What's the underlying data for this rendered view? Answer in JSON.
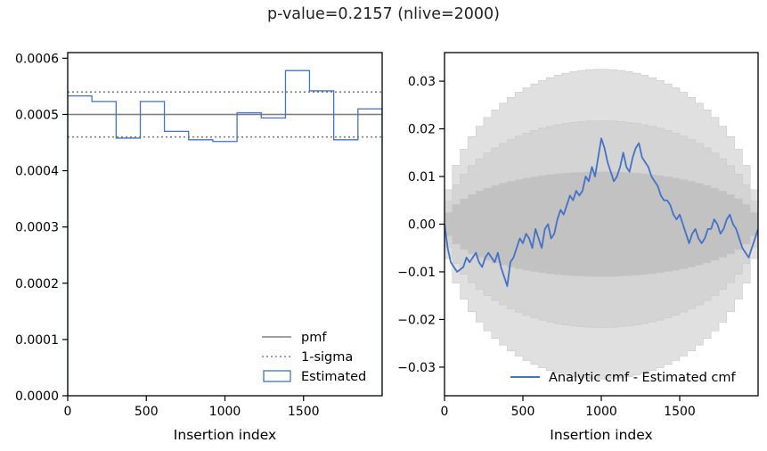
{
  "figure": {
    "title": "p-value=0.2157 (nlive=2000)"
  },
  "colors": {
    "estimated": "#4472c4",
    "pmf": "#808080",
    "band_outer": "#e0e0e0",
    "band_mid": "#d4d4d4",
    "band_inner": "#c2c2c2"
  },
  "chart_data": [
    {
      "type": "step",
      "title": "",
      "xlabel": "Insertion index",
      "ylabel": "",
      "xlim": [
        0,
        2000
      ],
      "ylim": [
        0,
        0.00061
      ],
      "xticks": [
        0,
        500,
        1000,
        1500
      ],
      "xtick_labels": [
        "0",
        "500",
        "1000",
        "1500"
      ],
      "yticks": [
        0,
        0.0001,
        0.0002,
        0.0003,
        0.0004,
        0.0005,
        0.0006
      ],
      "ytick_labels": [
        "0.0000",
        "0.0001",
        "0.0002",
        "0.0003",
        "0.0004",
        "0.0005",
        "0.0006"
      ],
      "legend_position": "lower-right",
      "pmf": 0.0005,
      "one_sigma": [
        0.00046,
        0.00054
      ],
      "bin_edges": [
        0,
        154,
        308,
        462,
        615,
        769,
        923,
        1077,
        1231,
        1385,
        1538,
        1692,
        1846,
        2000
      ],
      "estimated": [
        0.000533,
        0.000523,
        0.000458,
        0.000523,
        0.00047,
        0.000455,
        0.000452,
        0.000503,
        0.000494,
        0.000578,
        0.000542,
        0.000455,
        0.00051
      ],
      "series": [
        {
          "name": "pmf"
        },
        {
          "name": "1-sigma"
        },
        {
          "name": "Estimated"
        }
      ]
    },
    {
      "type": "line",
      "title": "",
      "xlabel": "Insertion index",
      "ylabel": "",
      "xlim": [
        0,
        2000
      ],
      "ylim": [
        -0.036,
        0.036
      ],
      "xticks": [
        0,
        500,
        1000,
        1500
      ],
      "xtick_labels": [
        "0",
        "500",
        "1000",
        "1500"
      ],
      "yticks": [
        -0.03,
        -0.02,
        -0.01,
        0.0,
        0.01,
        0.02,
        0.03
      ],
      "ytick_labels": [
        "−0.03",
        "−0.02",
        "−0.01",
        "0.00",
        "0.01",
        "0.02",
        "0.03"
      ],
      "legend_position": "lower-right",
      "bands": {
        "inner_peak": 0.011,
        "mid_peak": 0.0217,
        "outer_peak": 0.0325,
        "steps": 40
      },
      "x": [
        0,
        20,
        40,
        60,
        80,
        100,
        120,
        140,
        160,
        180,
        200,
        220,
        240,
        260,
        280,
        300,
        320,
        340,
        360,
        380,
        400,
        420,
        440,
        460,
        480,
        500,
        520,
        540,
        560,
        580,
        600,
        620,
        640,
        660,
        680,
        700,
        720,
        740,
        760,
        780,
        800,
        820,
        840,
        860,
        880,
        900,
        920,
        940,
        960,
        980,
        1000,
        1020,
        1040,
        1060,
        1080,
        1100,
        1120,
        1140,
        1160,
        1180,
        1200,
        1220,
        1240,
        1260,
        1280,
        1300,
        1320,
        1340,
        1360,
        1380,
        1400,
        1420,
        1440,
        1460,
        1480,
        1500,
        1520,
        1540,
        1560,
        1580,
        1600,
        1620,
        1640,
        1660,
        1680,
        1700,
        1720,
        1740,
        1760,
        1780,
        1800,
        1820,
        1840,
        1860,
        1880,
        1900,
        1920,
        1940,
        1960,
        1980,
        2000
      ],
      "series": [
        {
          "name": "Analytic cmf - Estimated cmf",
          "values": [
            0.0,
            -0.005,
            -0.008,
            -0.009,
            -0.01,
            -0.0095,
            -0.009,
            -0.007,
            -0.008,
            -0.007,
            -0.006,
            -0.008,
            -0.009,
            -0.007,
            -0.006,
            -0.007,
            -0.008,
            -0.006,
            -0.009,
            -0.011,
            -0.013,
            -0.008,
            -0.007,
            -0.005,
            -0.003,
            -0.004,
            -0.002,
            -0.003,
            -0.005,
            -0.001,
            -0.003,
            -0.005,
            -0.001,
            0.0,
            -0.003,
            -0.002,
            0.001,
            0.003,
            0.002,
            0.004,
            0.006,
            0.005,
            0.007,
            0.006,
            0.007,
            0.01,
            0.009,
            0.012,
            0.01,
            0.014,
            0.018,
            0.016,
            0.013,
            0.011,
            0.009,
            0.01,
            0.012,
            0.015,
            0.012,
            0.011,
            0.014,
            0.016,
            0.017,
            0.014,
            0.013,
            0.012,
            0.01,
            0.009,
            0.008,
            0.006,
            0.005,
            0.005,
            0.004,
            0.002,
            0.001,
            0.002,
            0.0,
            -0.002,
            -0.004,
            -0.002,
            -0.001,
            -0.003,
            -0.004,
            -0.003,
            -0.001,
            -0.001,
            0.001,
            0.0,
            -0.002,
            -0.001,
            0.001,
            0.002,
            0.0,
            -0.001,
            -0.003,
            -0.005,
            -0.006,
            -0.007,
            -0.005,
            -0.003,
            -0.001
          ]
        }
      ]
    }
  ]
}
